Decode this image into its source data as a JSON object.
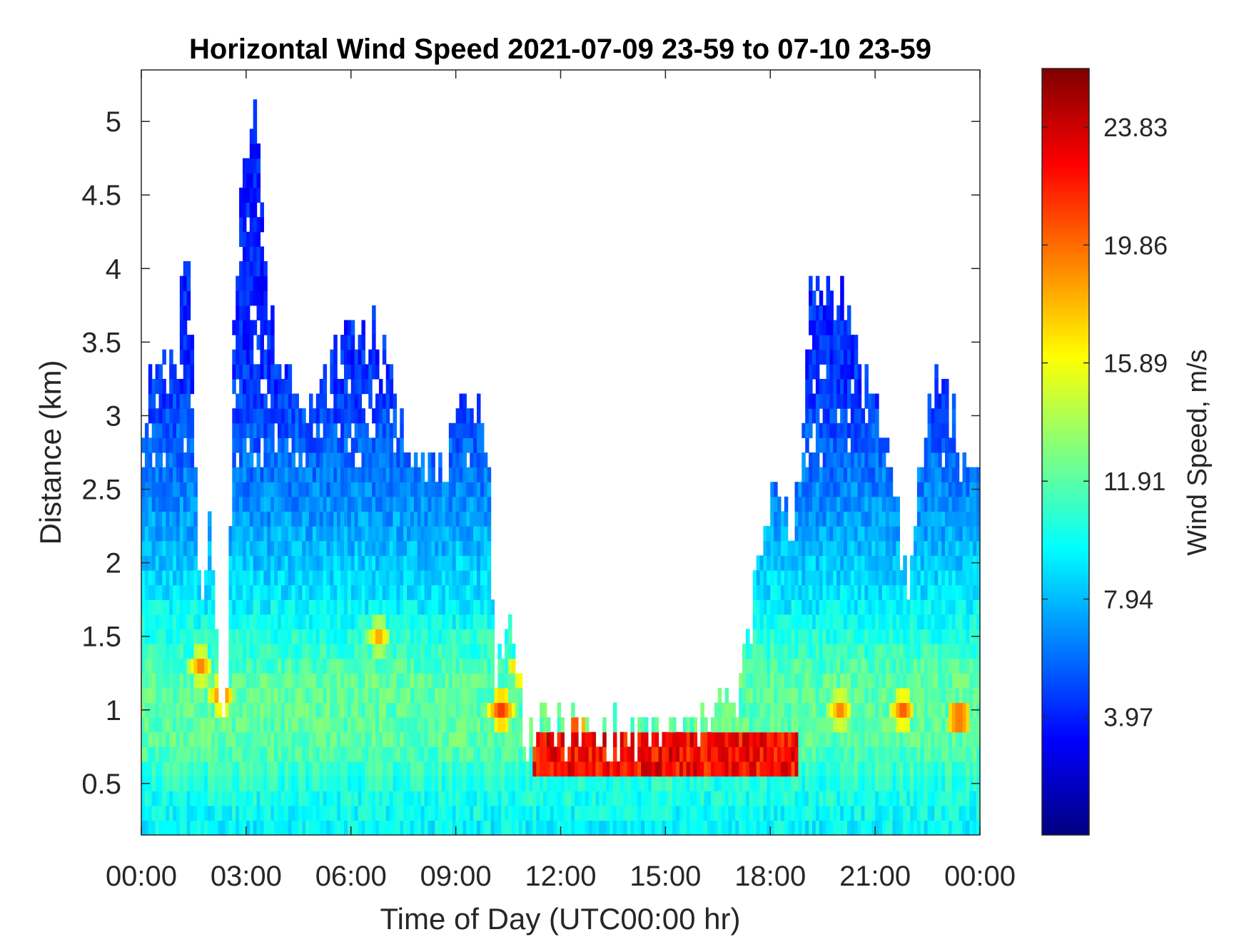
{
  "chart_data": {
    "type": "heatmap",
    "title": "Horizontal Wind Speed 2021-07-09 23-59 to 07-10 23-59",
    "xlabel": "Time of Day (UTC00:00 hr)",
    "ylabel": "Distance (km)",
    "colorbar_label": "Wind Speed, m/s",
    "x_range_hours": [
      0,
      24
    ],
    "x_tick_labels": [
      "00:00",
      "03:00",
      "06:00",
      "09:00",
      "12:00",
      "15:00",
      "18:00",
      "21:00",
      "00:00"
    ],
    "ylim": [
      0.15,
      5.35
    ],
    "y_ticks": [
      0.5,
      1,
      1.5,
      2,
      2.5,
      3,
      3.5,
      4,
      4.5,
      5
    ],
    "y_tick_labels": [
      "0.5",
      "1",
      "1.5",
      "2",
      "2.5",
      "3",
      "3.5",
      "4",
      "4.5",
      "5"
    ],
    "colorbar_range": [
      0,
      25.8
    ],
    "colorbar_ticks": [
      3.97,
      7.94,
      11.91,
      15.89,
      19.86,
      23.83
    ],
    "colorbar_tick_labels": [
      "3.97",
      "7.94",
      "11.91",
      "15.89",
      "19.86",
      "23.83"
    ],
    "colormap": "jet",
    "grid": false,
    "legend": "colorbar-right",
    "time_step_hours": 0.1,
    "height_step_km": 0.1,
    "profile_tops_km": [
      [
        0,
        2.9
      ],
      [
        0.6,
        3.4
      ],
      [
        1.0,
        3.2
      ],
      [
        1.3,
        4.3
      ],
      [
        1.5,
        3.0
      ],
      [
        1.7,
        1.4
      ],
      [
        2.0,
        2.3
      ],
      [
        2.2,
        1.2
      ],
      [
        2.5,
        1.0
      ],
      [
        2.6,
        3.2
      ],
      [
        2.9,
        4.8
      ],
      [
        3.3,
        5.1
      ],
      [
        3.6,
        3.7
      ],
      [
        4.0,
        3.3
      ],
      [
        4.5,
        3.2
      ],
      [
        5.0,
        3.0
      ],
      [
        5.5,
        3.3
      ],
      [
        6.0,
        3.6
      ],
      [
        6.6,
        3.5
      ],
      [
        7.0,
        3.3
      ],
      [
        7.5,
        2.8
      ],
      [
        8.0,
        2.8
      ],
      [
        8.5,
        2.5
      ],
      [
        9.0,
        2.8
      ],
      [
        9.5,
        3.2
      ],
      [
        9.9,
        2.8
      ],
      [
        10.1,
        1.3
      ],
      [
        10.6,
        1.5
      ],
      [
        11.0,
        0.8
      ],
      [
        12.0,
        0.85
      ],
      [
        13.0,
        0.75
      ],
      [
        15.0,
        0.8
      ],
      [
        16.0,
        0.8
      ],
      [
        16.5,
        1.1
      ],
      [
        17.0,
        0.85
      ],
      [
        17.4,
        1.5
      ],
      [
        17.8,
        2.1
      ],
      [
        18.2,
        2.5
      ],
      [
        18.6,
        2.2
      ],
      [
        18.9,
        2.7
      ],
      [
        19.2,
        3.9
      ],
      [
        19.5,
        3.9
      ],
      [
        20.0,
        3.8
      ],
      [
        20.5,
        3.4
      ],
      [
        21.0,
        3.0
      ],
      [
        21.5,
        2.6
      ],
      [
        22.0,
        1.6
      ],
      [
        22.3,
        2.6
      ],
      [
        22.7,
        3.2
      ],
      [
        23.0,
        3.2
      ],
      [
        23.5,
        2.6
      ],
      [
        24.0,
        2.6
      ]
    ],
    "wind_speed_profile_by_height": [
      {
        "height_km": 0.2,
        "speed_ms": 9.5
      },
      {
        "height_km": 0.5,
        "speed_ms": 10.5
      },
      {
        "height_km": 0.8,
        "speed_ms": 12.0
      },
      {
        "height_km": 1.2,
        "speed_ms": 12.0
      },
      {
        "height_km": 1.8,
        "speed_ms": 9.0
      },
      {
        "height_km": 2.5,
        "speed_ms": 6.5
      },
      {
        "height_km": 3.2,
        "speed_ms": 4.5
      },
      {
        "height_km": 4.5,
        "speed_ms": 3.8
      }
    ],
    "jet_layer": {
      "time_start_hours": 11.2,
      "time_end_hours": 18.8,
      "height_km_range": [
        0.5,
        0.8
      ],
      "speed_ms": 22.5
    },
    "hotspots": [
      {
        "time_hours": 1.7,
        "height_km": 1.3,
        "speed_ms": 20
      },
      {
        "time_hours": 2.3,
        "height_km": 1.1,
        "speed_ms": 21
      },
      {
        "time_hours": 6.8,
        "height_km": 1.5,
        "speed_ms": 19
      },
      {
        "time_hours": 10.3,
        "height_km": 1.0,
        "speed_ms": 22
      },
      {
        "time_hours": 10.9,
        "height_km": 1.3,
        "speed_ms": 21
      },
      {
        "time_hours": 12.4,
        "height_km": 0.85,
        "speed_ms": 23
      },
      {
        "time_hours": 20.0,
        "height_km": 1.0,
        "speed_ms": 20
      },
      {
        "time_hours": 21.8,
        "height_km": 1.0,
        "speed_ms": 21
      },
      {
        "time_hours": 23.4,
        "height_km": 0.95,
        "speed_ms": 22
      }
    ]
  }
}
